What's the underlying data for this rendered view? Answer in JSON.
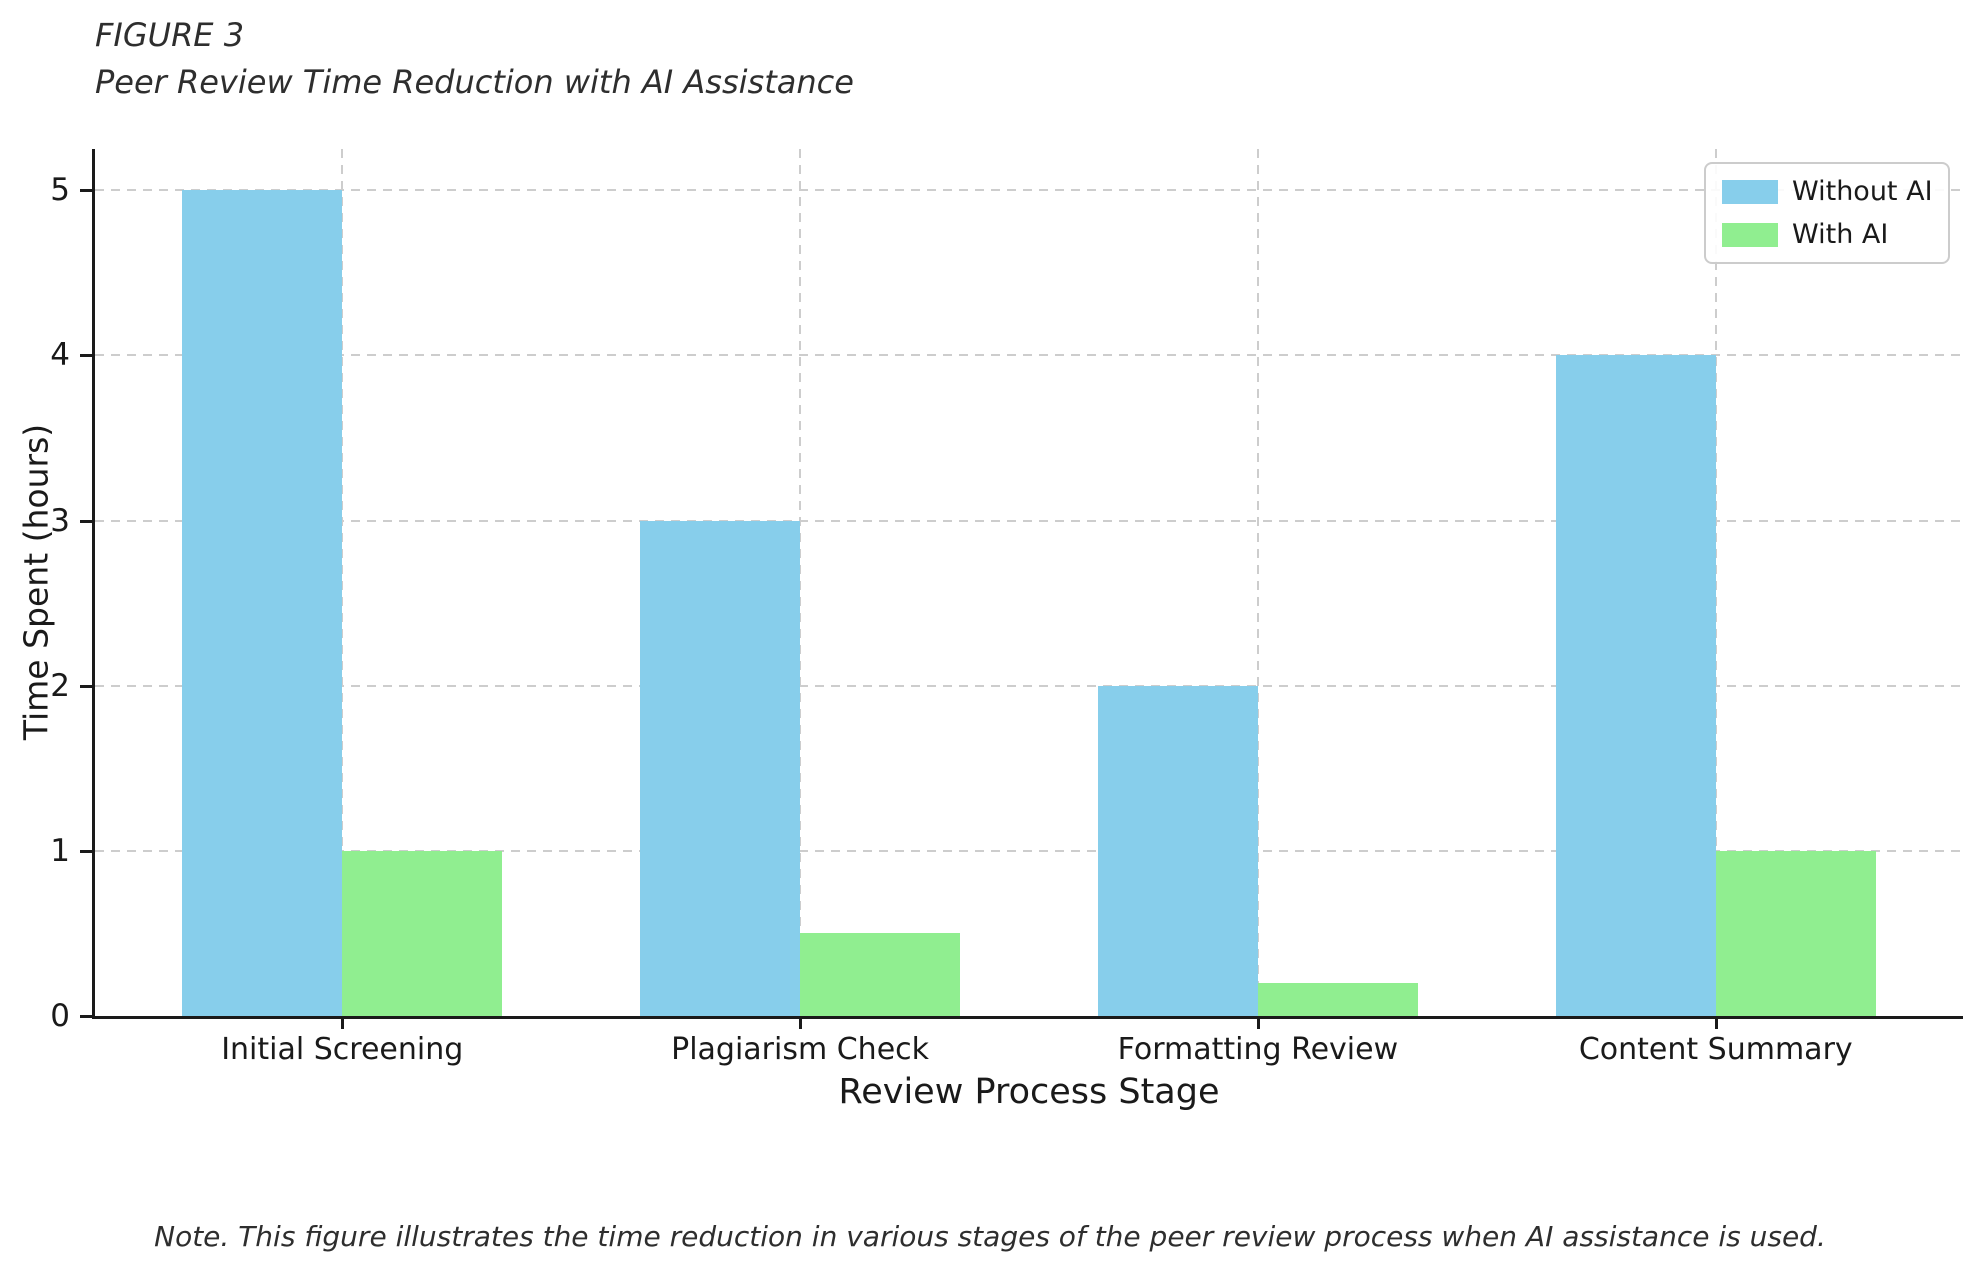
{
  "figure": {
    "label": "FIGURE 3",
    "title": "Peer Review Time Reduction with AI Assistance",
    "note": "Note. This figure illustrates the time reduction in various stages of the peer review process when AI assistance is used."
  },
  "chart_data": {
    "type": "bar",
    "categories": [
      "Initial Screening",
      "Plagiarism Check",
      "Formatting Review",
      "Content Summary"
    ],
    "series": [
      {
        "name": "Without AI",
        "color": "#87CEEB",
        "values": [
          5,
          3,
          2,
          4
        ]
      },
      {
        "name": "With AI",
        "color": "#90EE90",
        "values": [
          1,
          0.5,
          0.2,
          1
        ]
      }
    ],
    "title": "Peer Review Time Reduction with AI Assistance",
    "xlabel": "Review Process Stage",
    "ylabel": "Time Spent (hours)",
    "yticks": [
      0,
      1,
      2,
      3,
      4,
      5
    ],
    "ylim": [
      0,
      5.25
    ],
    "grid": "dashed, both axes",
    "legend_position": "upper right",
    "grid_color": "#cccccc",
    "axis_color": "#1a1a1a"
  }
}
